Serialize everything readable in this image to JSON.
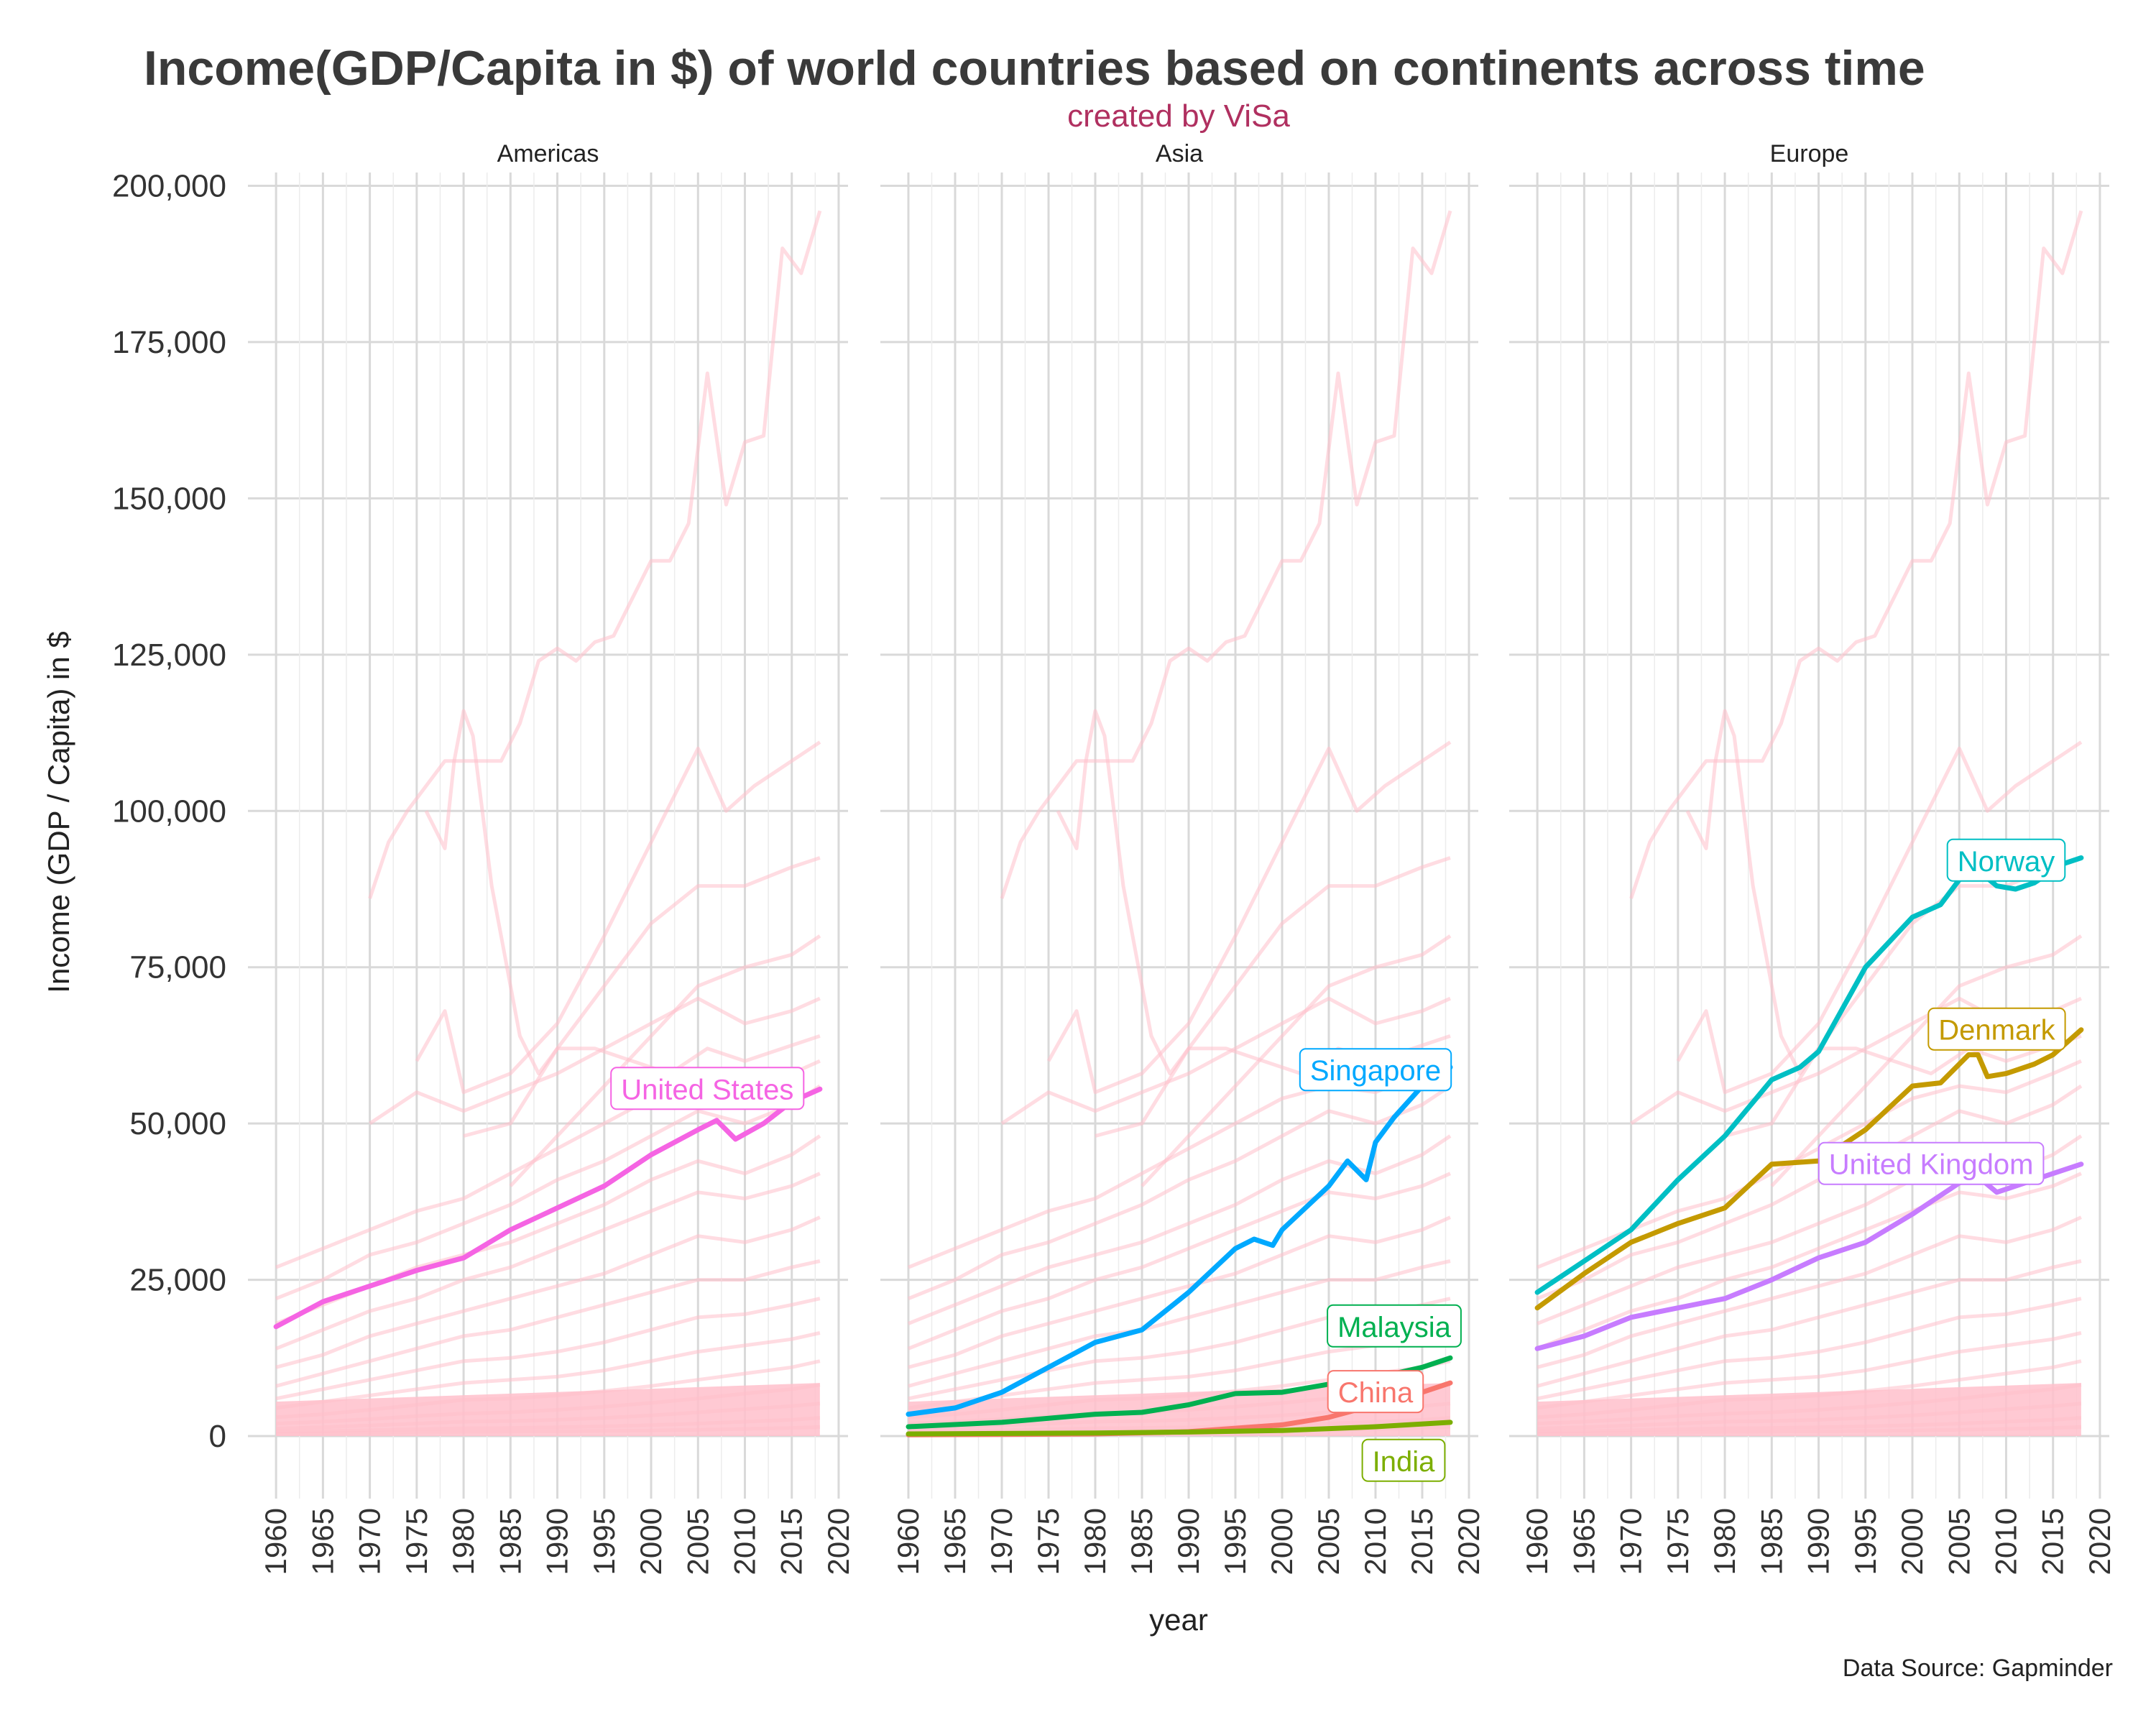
{
  "colors": {
    "background_series": "#ffc0cb",
    "title": "#3a3a3a",
    "subtitle": "#b03060",
    "grid": "#d9d9d9"
  },
  "chart_data": {
    "type": "line",
    "title": "Income(GDP/Capita in $) of world countries based on continents across time",
    "subtitle": "created by ViSa",
    "xlabel": "year",
    "ylabel": "Income (GDP / Capita) in $",
    "caption": "Data Source: Gapminder",
    "xlim": [
      1957,
      2021
    ],
    "ylim": [
      -10000,
      205000
    ],
    "x_ticks": [
      1960,
      1965,
      1970,
      1975,
      1980,
      1985,
      1990,
      1995,
      2000,
      2005,
      2010,
      2015,
      2020
    ],
    "y_ticks": [
      0,
      25000,
      50000,
      75000,
      100000,
      125000,
      150000,
      175000,
      200000
    ],
    "y_tick_labels": [
      "0",
      "25,000",
      "50,000",
      "75,000",
      "100,000",
      "125,000",
      "150,000",
      "175,000",
      "200,000"
    ],
    "grid": true,
    "legend": "none",
    "facets": [
      {
        "name": "Americas",
        "highlighted": [
          {
            "name": "United States",
            "color": "#f564e3",
            "x": [
              1960,
              1965,
              1970,
              1975,
              1980,
              1985,
              1990,
              1995,
              2000,
              2005,
              2007,
              2009,
              2012,
              2015,
              2018
            ],
            "y": [
              17500,
              21500,
              24000,
              26500,
              28500,
              33000,
              36500,
              40000,
              45000,
              49000,
              50500,
              47500,
              50000,
              53500,
              55500
            ]
          }
        ]
      },
      {
        "name": "Asia",
        "highlighted": [
          {
            "name": "Singapore",
            "color": "#00a9ff",
            "x": [
              1960,
              1965,
              1970,
              1975,
              1980,
              1985,
              1990,
              1995,
              1997,
              1999,
              2000,
              2005,
              2007,
              2009,
              2010,
              2012,
              2015,
              2016,
              2018
            ],
            "y": [
              3500,
              4500,
              7000,
              11000,
              15000,
              17000,
              23000,
              30000,
              31500,
              30500,
              33000,
              40000,
              44000,
              41000,
              47000,
              51000,
              56000,
              59000,
              59000
            ]
          },
          {
            "name": "Malaysia",
            "color": "#00b050",
            "x": [
              1960,
              1970,
              1980,
              1985,
              1990,
              1995,
              2000,
              2005,
              2010,
              2015,
              2018
            ],
            "y": [
              1500,
              2200,
              3500,
              3800,
              5000,
              6800,
              7000,
              8300,
              9300,
              11000,
              12500
            ]
          },
          {
            "name": "China",
            "color": "#f8766d",
            "x": [
              1960,
              1970,
              1980,
              1990,
              2000,
              2005,
              2010,
              2015,
              2018
            ],
            "y": [
              200,
              250,
              350,
              700,
              1800,
              3000,
              5000,
              7000,
              8500
            ]
          },
          {
            "name": "India",
            "color": "#7cae00",
            "x": [
              1960,
              1970,
              1980,
              1990,
              2000,
              2010,
              2018
            ],
            "y": [
              350,
              420,
              480,
              650,
              900,
              1500,
              2200
            ]
          }
        ]
      },
      {
        "name": "Europe",
        "highlighted": [
          {
            "name": "Norway",
            "color": "#00bfc4",
            "x": [
              1960,
              1965,
              1970,
              1975,
              1980,
              1985,
              1988,
              1990,
              1995,
              2000,
              2003,
              2005,
              2007,
              2009,
              2011,
              2013,
              2016,
              2018
            ],
            "y": [
              23000,
              28000,
              33000,
              41000,
              48000,
              57000,
              59000,
              61500,
              75000,
              83000,
              85000,
              89000,
              90500,
              88000,
              87500,
              88500,
              91500,
              92500
            ]
          },
          {
            "name": "Denmark",
            "color": "#c49a00",
            "x": [
              1960,
              1965,
              1970,
              1975,
              1980,
              1985,
              1990,
              1995,
              2000,
              2003,
              2006,
              2007,
              2008,
              2010,
              2013,
              2015,
              2018
            ],
            "y": [
              20500,
              26000,
              31000,
              34000,
              36500,
              43500,
              44000,
              49000,
              56000,
              56500,
              61000,
              61000,
              57500,
              58000,
              59500,
              61000,
              65000
            ]
          },
          {
            "name": "United Kingdom",
            "color": "#c77cff",
            "x": [
              1960,
              1965,
              1970,
              1975,
              1980,
              1985,
              1990,
              1995,
              2000,
              2005,
              2007,
              2009,
              2012,
              2015,
              2018
            ],
            "y": [
              14000,
              16000,
              19000,
              20500,
              22000,
              25000,
              28500,
              31000,
              35500,
              40500,
              41500,
              39000,
              40500,
              42000,
              43500
            ]
          }
        ]
      }
    ],
    "background_series": [
      {
        "x": [
          1970,
          1972,
          1974,
          1976,
          1978,
          1980,
          1982,
          1984,
          1986,
          1988,
          1990,
          1992,
          1994,
          1996,
          1998,
          2000,
          2002,
          2004,
          2006,
          2008,
          2010,
          2012,
          2014,
          2016,
          2018
        ],
        "y": [
          86000,
          95000,
          100000,
          104000,
          108000,
          108000,
          108000,
          108000,
          114000,
          124000,
          126000,
          124000,
          127000,
          128000,
          134000,
          140000,
          140000,
          146000,
          170000,
          149000,
          159000,
          160000,
          190000,
          186000,
          196000
        ]
      },
      {
        "x": [
          1976,
          1978,
          1979,
          1980,
          1981,
          1983,
          1984,
          1986,
          1988,
          1990,
          1994,
          1998,
          2002,
          2006,
          2010,
          2014,
          2018
        ],
        "y": [
          100000,
          94000,
          108000,
          116000,
          112000,
          88000,
          80000,
          64000,
          58000,
          62000,
          62000,
          60000,
          58000,
          62000,
          60000,
          62000,
          64000
        ]
      },
      {
        "x": [
          1975,
          1978,
          1980,
          1985,
          1990,
          1995,
          2000,
          2005,
          2008,
          2011,
          2015,
          2018
        ],
        "y": [
          60000,
          68000,
          55000,
          58000,
          66000,
          80000,
          95000,
          110000,
          100000,
          104000,
          108000,
          111000
        ]
      },
      {
        "x": [
          1980,
          1985,
          1990,
          1995,
          2000,
          2005,
          2010,
          2015,
          2018
        ],
        "y": [
          48000,
          50000,
          62000,
          72000,
          82000,
          88000,
          88000,
          91000,
          92500
        ]
      },
      {
        "x": [
          1985,
          1990,
          1995,
          2000,
          2005,
          2010,
          2015,
          2018
        ],
        "y": [
          40000,
          48000,
          56000,
          64000,
          72000,
          75000,
          77000,
          80000
        ]
      },
      {
        "x": [
          1970,
          1975,
          1980,
          1985,
          1990,
          1995,
          2000,
          2005,
          2010,
          2015,
          2018
        ],
        "y": [
          50000,
          55000,
          52000,
          55000,
          58000,
          62000,
          66000,
          70000,
          66000,
          68000,
          70000
        ]
      },
      {
        "x": [
          1960,
          1965,
          1970,
          1975,
          1980,
          1985,
          1990,
          1995,
          2000,
          2005,
          2010,
          2015,
          2018
        ],
        "y": [
          27000,
          30000,
          33000,
          36000,
          38000,
          42000,
          46000,
          50000,
          54000,
          56000,
          55000,
          58000,
          60000
        ]
      },
      {
        "x": [
          1960,
          1965,
          1970,
          1975,
          1980,
          1985,
          1990,
          1995,
          2000,
          2005,
          2010,
          2015,
          2018
        ],
        "y": [
          22000,
          25000,
          29000,
          31000,
          34000,
          37000,
          41000,
          44000,
          48000,
          52000,
          50000,
          53000,
          56000
        ]
      },
      {
        "x": [
          1960,
          1965,
          1970,
          1975,
          1980,
          1985,
          1990,
          1995,
          2000,
          2005,
          2010,
          2015,
          2018
        ],
        "y": [
          18000,
          21000,
          24000,
          27000,
          29000,
          31000,
          34000,
          37000,
          41000,
          44000,
          42000,
          45000,
          48000
        ]
      },
      {
        "x": [
          1960,
          1965,
          1970,
          1975,
          1980,
          1985,
          1990,
          1995,
          2000,
          2005,
          2010,
          2015,
          2018
        ],
        "y": [
          14000,
          17000,
          20000,
          22000,
          25000,
          27000,
          30000,
          33000,
          36000,
          39000,
          38000,
          40000,
          42000
        ]
      },
      {
        "x": [
          1960,
          1965,
          1970,
          1975,
          1980,
          1985,
          1990,
          1995,
          2000,
          2005,
          2010,
          2015,
          2018
        ],
        "y": [
          11000,
          13000,
          16000,
          18000,
          20000,
          22000,
          24000,
          26000,
          29000,
          32000,
          31000,
          33000,
          35000
        ]
      },
      {
        "x": [
          1960,
          1965,
          1970,
          1975,
          1980,
          1985,
          1990,
          1995,
          2000,
          2005,
          2010,
          2015,
          2018
        ],
        "y": [
          8000,
          10000,
          12000,
          14000,
          16000,
          17000,
          19000,
          21000,
          23000,
          25000,
          25000,
          27000,
          28000
        ]
      },
      {
        "x": [
          1960,
          1965,
          1970,
          1975,
          1980,
          1985,
          1990,
          1995,
          2000,
          2005,
          2010,
          2015,
          2018
        ],
        "y": [
          6000,
          7500,
          9000,
          10500,
          12000,
          12500,
          13500,
          15000,
          17000,
          19000,
          19500,
          21000,
          22000
        ]
      },
      {
        "x": [
          1960,
          1965,
          1970,
          1975,
          1980,
          1985,
          1990,
          1995,
          2000,
          2005,
          2010,
          2015,
          2018
        ],
        "y": [
          4500,
          5500,
          6500,
          7500,
          8500,
          9000,
          9500,
          10500,
          12000,
          13500,
          14500,
          15500,
          16500
        ]
      },
      {
        "x": [
          1960,
          1965,
          1970,
          1975,
          1980,
          1985,
          1990,
          1995,
          2000,
          2005,
          2010,
          2015,
          2018
        ],
        "y": [
          3000,
          3500,
          4200,
          5000,
          5800,
          6000,
          6500,
          7200,
          8000,
          9000,
          10000,
          11000,
          12000
        ]
      },
      {
        "x": [
          1960,
          1965,
          1970,
          1975,
          1980,
          1985,
          1990,
          1995,
          2000,
          2005,
          2010,
          2015,
          2018
        ],
        "y": [
          2000,
          2300,
          2700,
          3200,
          3600,
          3800,
          4200,
          4700,
          5300,
          6000,
          6800,
          7500,
          8200
        ]
      },
      {
        "x": [
          1960,
          1965,
          1970,
          1975,
          1980,
          1985,
          1990,
          1995,
          2000,
          2005,
          2010,
          2015,
          2018
        ],
        "y": [
          1200,
          1400,
          1700,
          2000,
          2300,
          2400,
          2600,
          2900,
          3300,
          3800,
          4300,
          4800,
          5200
        ]
      },
      {
        "x": [
          1960,
          1965,
          1970,
          1975,
          1980,
          1985,
          1990,
          1995,
          2000,
          2005,
          2010,
          2015,
          2018
        ],
        "y": [
          700,
          800,
          950,
          1100,
          1250,
          1300,
          1400,
          1550,
          1750,
          2000,
          2300,
          2600,
          2900
        ]
      },
      {
        "x": [
          1960,
          1965,
          1970,
          1975,
          1980,
          1985,
          1990,
          1995,
          2000,
          2005,
          2010,
          2015,
          2018
        ],
        "y": [
          400,
          450,
          520,
          600,
          680,
          700,
          760,
          820,
          900,
          1000,
          1150,
          1300,
          1450
        ]
      }
    ],
    "background_band": {
      "x": [
        1960,
        2018
      ],
      "y_top": [
        5500,
        8500
      ]
    }
  }
}
